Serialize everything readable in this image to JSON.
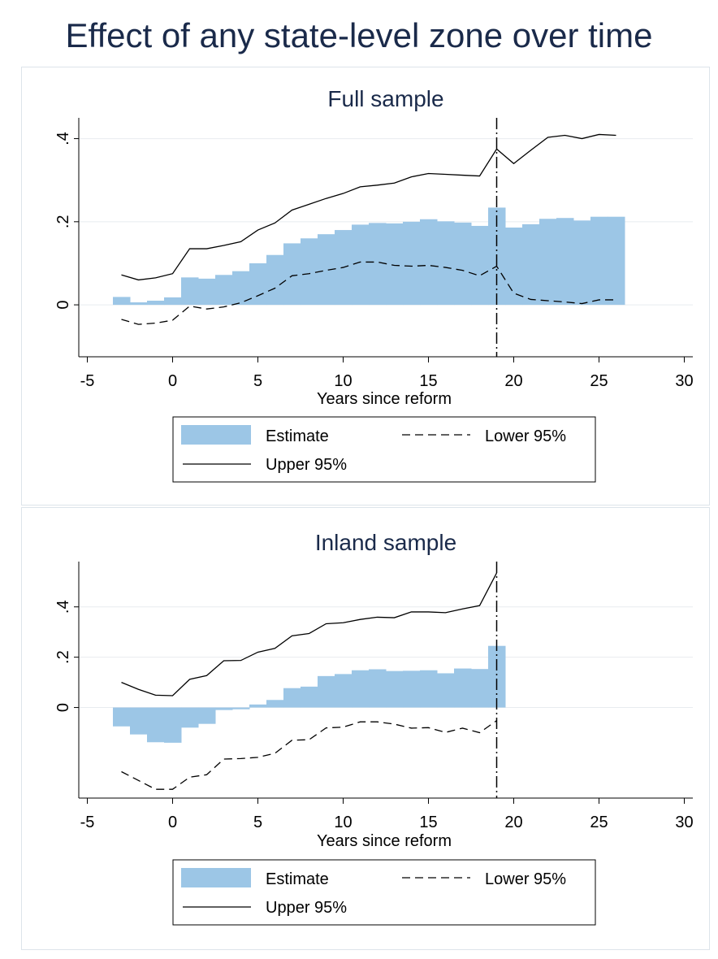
{
  "title": "Effect of any state-level zone over time",
  "chart_data": [
    {
      "type": "bar",
      "title": "Full sample",
      "xlabel": "Years since reform",
      "ylabel": "",
      "xlim": [
        -5.5,
        30.5
      ],
      "ylim": [
        -0.125,
        0.45
      ],
      "xticks": [
        "-5",
        "0",
        "5",
        "10",
        "15",
        "20",
        "25",
        "30"
      ],
      "yticks": [
        "0",
        ".2",
        ".4"
      ],
      "vline_x": 19,
      "x": [
        -3,
        -2,
        -1,
        0,
        1,
        2,
        3,
        4,
        5,
        6,
        7,
        8,
        9,
        10,
        11,
        12,
        13,
        14,
        15,
        16,
        17,
        18,
        19,
        20,
        21,
        22,
        23,
        24,
        25,
        26
      ],
      "series": [
        {
          "name": "Estimate",
          "values": [
            0.019,
            0.006,
            0.01,
            0.018,
            0.066,
            0.063,
            0.072,
            0.081,
            0.1,
            0.12,
            0.148,
            0.16,
            0.17,
            0.18,
            0.193,
            0.197,
            0.196,
            0.2,
            0.206,
            0.201,
            0.198,
            0.19,
            0.234,
            0.186,
            0.194,
            0.207,
            0.209,
            0.203,
            0.212,
            0.212
          ]
        },
        {
          "name": "Upper 95%",
          "values": [
            0.072,
            0.06,
            0.065,
            0.075,
            0.135,
            0.135,
            0.143,
            0.152,
            0.18,
            0.197,
            0.228,
            0.242,
            0.256,
            0.268,
            0.284,
            0.288,
            0.293,
            0.308,
            0.316,
            0.314,
            0.312,
            0.31,
            0.375,
            0.34,
            0.372,
            0.403,
            0.408,
            0.4,
            0.41,
            0.408
          ]
        },
        {
          "name": "Lower 95%",
          "values": [
            -0.035,
            -0.047,
            -0.044,
            -0.037,
            -0.003,
            -0.01,
            -0.005,
            0.005,
            0.022,
            0.04,
            0.07,
            0.075,
            0.083,
            0.09,
            0.103,
            0.103,
            0.095,
            0.093,
            0.095,
            0.09,
            0.083,
            0.07,
            0.093,
            0.028,
            0.013,
            0.01,
            0.007,
            0.003,
            0.012,
            0.012
          ]
        }
      ],
      "legend": {
        "position": "bottom",
        "entries": [
          "Estimate",
          "Lower 95%",
          "Upper 95%"
        ]
      },
      "colors": {
        "bar": "#9cc6e6",
        "ci": "#000000",
        "title": "#1a2a4a",
        "grid": "#e8ecef"
      }
    },
    {
      "type": "bar",
      "title": "Inland sample",
      "xlabel": "Years since reform",
      "ylabel": "",
      "xlim": [
        -5.5,
        30.5
      ],
      "ylim": [
        -0.36,
        0.58
      ],
      "xticks": [
        "-5",
        "0",
        "5",
        "10",
        "15",
        "20",
        "25",
        "30"
      ],
      "yticks": [
        "0",
        ".2",
        ".4"
      ],
      "vline_x": 19,
      "x": [
        -3,
        -2,
        -1,
        0,
        1,
        2,
        3,
        4,
        5,
        6,
        7,
        8,
        9,
        10,
        11,
        12,
        13,
        14,
        15,
        16,
        17,
        18,
        19
      ],
      "series": [
        {
          "name": "Estimate",
          "values": [
            -0.075,
            -0.107,
            -0.138,
            -0.14,
            -0.08,
            -0.065,
            -0.01,
            -0.007,
            0.012,
            0.03,
            0.077,
            0.083,
            0.125,
            0.133,
            0.148,
            0.152,
            0.145,
            0.146,
            0.148,
            0.136,
            0.155,
            0.153,
            0.245
          ]
        },
        {
          "name": "Upper 95%",
          "values": [
            0.1,
            0.072,
            0.049,
            0.047,
            0.112,
            0.127,
            0.186,
            0.187,
            0.22,
            0.235,
            0.285,
            0.294,
            0.333,
            0.337,
            0.35,
            0.359,
            0.357,
            0.38,
            0.38,
            0.377,
            0.392,
            0.405,
            0.535
          ]
        },
        {
          "name": "Lower 95%",
          "values": [
            -0.255,
            -0.29,
            -0.325,
            -0.325,
            -0.277,
            -0.267,
            -0.205,
            -0.203,
            -0.198,
            -0.182,
            -0.13,
            -0.128,
            -0.081,
            -0.078,
            -0.057,
            -0.057,
            -0.066,
            -0.082,
            -0.08,
            -0.099,
            -0.082,
            -0.1,
            -0.052
          ]
        }
      ],
      "legend": {
        "position": "bottom",
        "entries": [
          "Estimate",
          "Lower 95%",
          "Upper 95%"
        ]
      },
      "colors": {
        "bar": "#9cc6e6",
        "ci": "#000000",
        "title": "#1a2a4a",
        "grid": "#e8ecef"
      }
    }
  ]
}
